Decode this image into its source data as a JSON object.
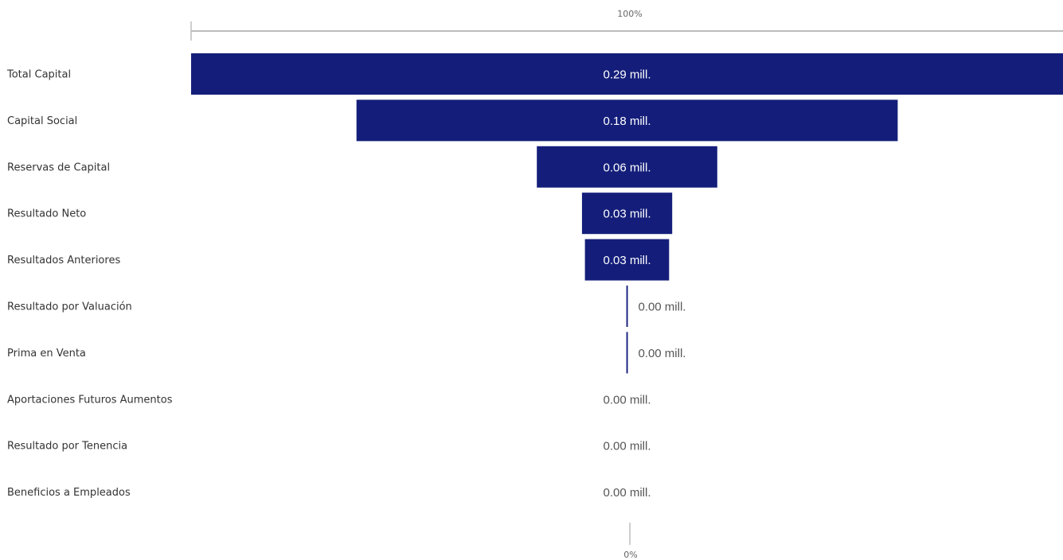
{
  "chart_data": {
    "type": "funnel",
    "categories": [
      "Total Capital",
      "Capital Social",
      "Reservas de Capital",
      "Resultado Neto",
      "Resultados Anteriores",
      "Resultado por Valuación",
      "Prima en Venta",
      "Aportaciones Futuros Aumentos",
      "Resultado por Tenencia",
      "Beneficios a Empleados"
    ],
    "values": [
      0.29,
      0.18,
      0.06,
      0.03,
      0.028,
      0.0005,
      0.0005,
      0,
      0,
      0
    ],
    "data_labels": [
      "0.29 mill.",
      "0.18 mill.",
      "0.06 mill.",
      "0.03 mill.",
      "0.03 mill.",
      "0.00 mill.",
      "0.00 mill.",
      "0.00 mill.",
      "0.00 mill.",
      "0.00 mill."
    ],
    "top_percent_label": "100%",
    "bottom_percent_label": "0%",
    "bar_color": "#141E7A"
  }
}
